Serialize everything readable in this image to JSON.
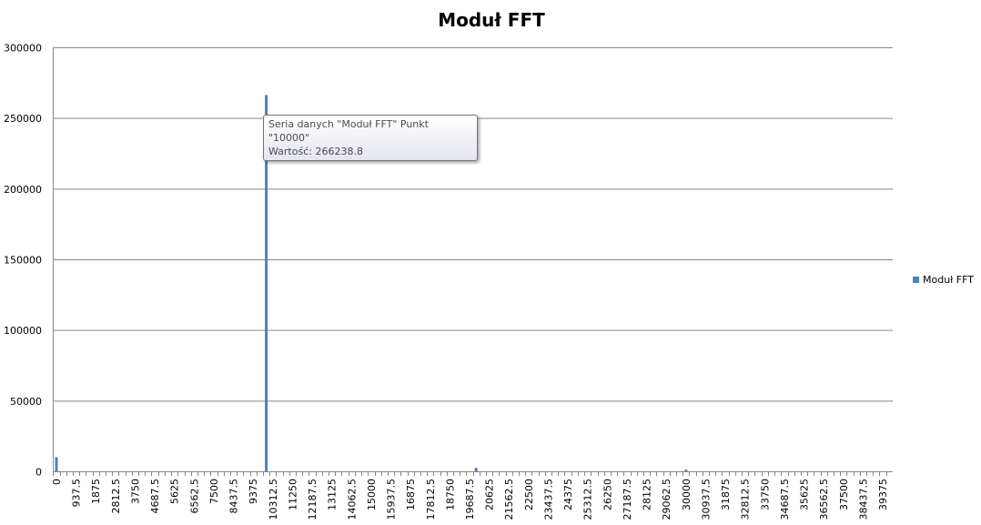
{
  "chart_data": {
    "type": "bar",
    "title": "Moduł FFT",
    "xlabel": "",
    "ylabel": "",
    "ylim": [
      0,
      300000
    ],
    "yticks": [
      "0",
      "50000",
      "100000",
      "150000",
      "200000",
      "250000",
      "300000"
    ],
    "xticks": [
      "0",
      "937.5",
      "1875",
      "2812.5",
      "3750",
      "4687.5",
      "5625",
      "6562.5",
      "7500",
      "8437.5",
      "9375",
      "10312.5",
      "11250",
      "12187.5",
      "13125",
      "14062.5",
      "15000",
      "15937.5",
      "16875",
      "17812.5",
      "18750",
      "19687.5",
      "20625",
      "21562.5",
      "22500",
      "23437.5",
      "24375",
      "25312.5",
      "26250",
      "27187.5",
      "28125",
      "29062.5",
      "30000",
      "30937.5",
      "31875",
      "32812.5",
      "33750",
      "34687.5",
      "35625",
      "36562.5",
      "37500",
      "38437.5",
      "39375"
    ],
    "grid": true,
    "legend": "right",
    "color": "#4f81bd",
    "series": [
      {
        "name": "Moduł FFT",
        "x": [
          0,
          10000,
          20000,
          30000
        ],
        "values": [
          10000,
          266238.8,
          2500,
          1200
        ]
      }
    ]
  },
  "tooltip": {
    "line1": "Seria danych \"Moduł FFT\" Punkt \"10000\"",
    "line2": "Wartość: 266238.8"
  }
}
